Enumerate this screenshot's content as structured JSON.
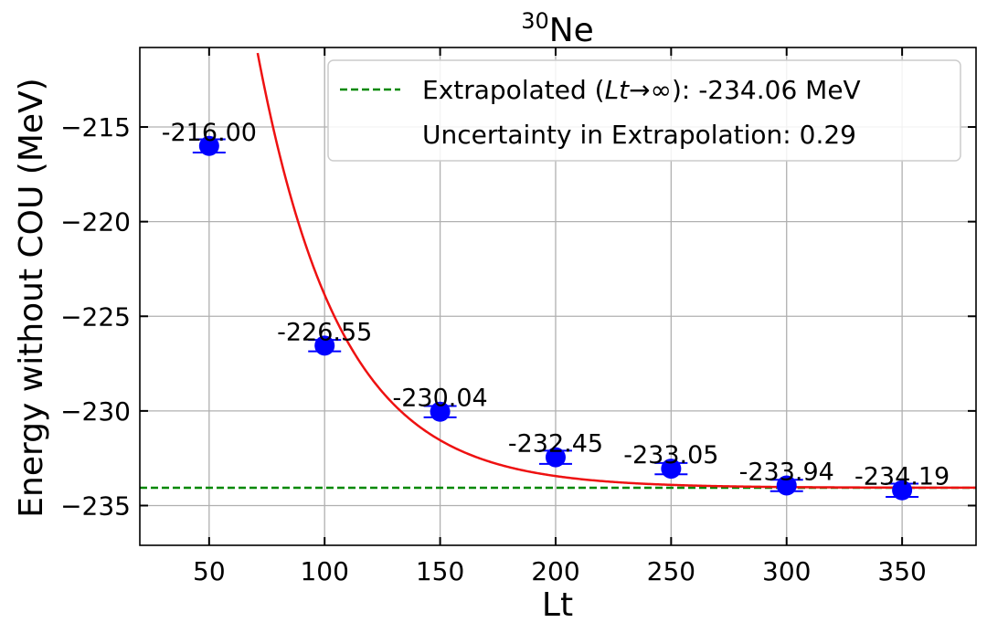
{
  "chart_data": {
    "type": "scatter",
    "title_base": "Ne",
    "title_sup": "30",
    "xlabel": "Lt",
    "ylabel": "Energy without COU (MeV)",
    "xlim": [
      20,
      382
    ],
    "ylim": [
      -237.1,
      -210.8
    ],
    "xticks": [
      50,
      100,
      150,
      200,
      250,
      300,
      350
    ],
    "yticks": [
      -215,
      -220,
      -225,
      -230,
      -235
    ],
    "ytick_labels": [
      "−215",
      "−220",
      "−225",
      "−230",
      "−235"
    ],
    "grid": true,
    "legend_position": "top-right",
    "points": {
      "x": [
        50,
        100,
        150,
        200,
        250,
        300,
        350
      ],
      "y": [
        -216.0,
        -226.55,
        -230.04,
        -232.45,
        -233.05,
        -233.94,
        -234.19
      ],
      "yerr": [
        0.35,
        0.3,
        0.3,
        0.35,
        0.3,
        0.3,
        0.35
      ],
      "labels": [
        "-216.00",
        "-226.55",
        "-230.04",
        "-232.45",
        "-233.05",
        "-233.94",
        "-234.19"
      ],
      "color": "#0000ff"
    },
    "fit_curve": {
      "asymptote": -234.06,
      "amplitude": 41.36,
      "decay_length": 35.7,
      "color": "#ee1111"
    },
    "extrapolated_line": {
      "y": -234.06,
      "color": "#008800"
    },
    "legend": {
      "line1_pre": "Extrapolated (",
      "line1_math": "Lt",
      "line1_arrow": "→∞",
      "line1_post": "): -234.06 MeV",
      "line2": "Uncertainty in Extrapolation: 0.29"
    }
  }
}
